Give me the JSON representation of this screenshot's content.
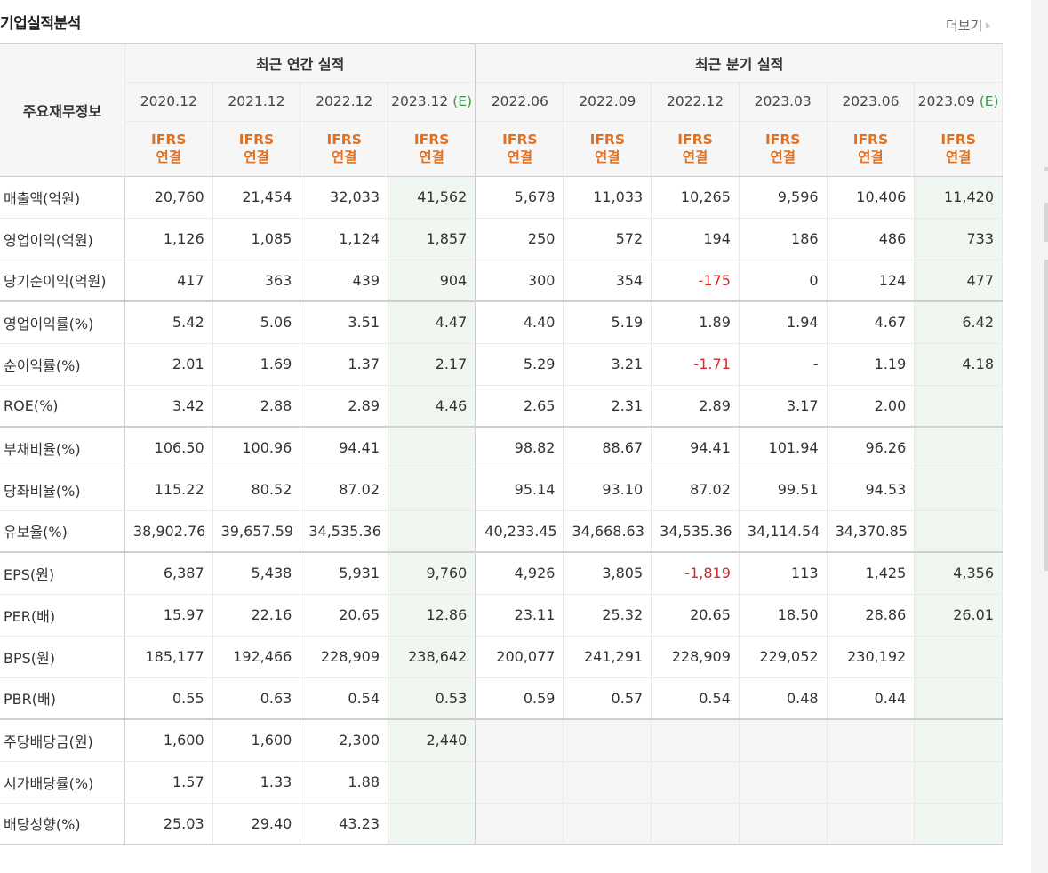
{
  "header": {
    "title": "기업실적분석",
    "more_label": "더보기"
  },
  "table": {
    "row_header": "주요재무정보",
    "groups": {
      "annual": "최근 연간 실적",
      "quarter": "최근 분기 실적"
    },
    "estimate_mark": "(E)",
    "columns": [
      {
        "period": "2020.12",
        "line1": "IFRS",
        "line2": "연결"
      },
      {
        "period": "2021.12",
        "line1": "IFRS",
        "line2": "연결"
      },
      {
        "period": "2022.12",
        "line1": "IFRS",
        "line2": "연결"
      },
      {
        "period": "2023.12",
        "line1": "IFRS",
        "line2": "연결"
      },
      {
        "period": "2022.06",
        "line1": "IFRS",
        "line2": "연결"
      },
      {
        "period": "2022.09",
        "line1": "IFRS",
        "line2": "연결"
      },
      {
        "period": "2022.12",
        "line1": "IFRS",
        "line2": "연결"
      },
      {
        "period": "2023.03",
        "line1": "IFRS",
        "line2": "연결"
      },
      {
        "period": "2023.06",
        "line1": "IFRS",
        "line2": "연결"
      },
      {
        "period": "2023.09",
        "line1": "IFRS",
        "line2": "연결"
      }
    ],
    "rows": [
      {
        "label": "매출액(억원)",
        "values": [
          "20,760",
          "21,454",
          "32,033",
          "41,562",
          "5,678",
          "11,033",
          "10,265",
          "9,596",
          "10,406",
          "11,420"
        ]
      },
      {
        "label": "영업이익(억원)",
        "values": [
          "1,126",
          "1,085",
          "1,124",
          "1,857",
          "250",
          "572",
          "194",
          "186",
          "486",
          "733"
        ]
      },
      {
        "label": "당기순이익(억원)",
        "values": [
          "417",
          "363",
          "439",
          "904",
          "300",
          "354",
          "-175",
          "0",
          "124",
          "477"
        ]
      },
      {
        "label": "영업이익률(%)",
        "values": [
          "5.42",
          "5.06",
          "3.51",
          "4.47",
          "4.40",
          "5.19",
          "1.89",
          "1.94",
          "4.67",
          "6.42"
        ]
      },
      {
        "label": "순이익률(%)",
        "values": [
          "2.01",
          "1.69",
          "1.37",
          "2.17",
          "5.29",
          "3.21",
          "-1.71",
          "-",
          "1.19",
          "4.18"
        ]
      },
      {
        "label": "ROE(%)",
        "values": [
          "3.42",
          "2.88",
          "2.89",
          "4.46",
          "2.65",
          "2.31",
          "2.89",
          "3.17",
          "2.00",
          ""
        ]
      },
      {
        "label": "부채비율(%)",
        "values": [
          "106.50",
          "100.96",
          "94.41",
          "",
          "98.82",
          "88.67",
          "94.41",
          "101.94",
          "96.26",
          ""
        ]
      },
      {
        "label": "당좌비율(%)",
        "values": [
          "115.22",
          "80.52",
          "87.02",
          "",
          "95.14",
          "93.10",
          "87.02",
          "99.51",
          "94.53",
          ""
        ]
      },
      {
        "label": "유보율(%)",
        "values": [
          "38,902.76",
          "39,657.59",
          "34,535.36",
          "",
          "40,233.45",
          "34,668.63",
          "34,535.36",
          "34,114.54",
          "34,370.85",
          ""
        ]
      },
      {
        "label": "EPS(원)",
        "values": [
          "6,387",
          "5,438",
          "5,931",
          "9,760",
          "4,926",
          "3,805",
          "-1,819",
          "113",
          "1,425",
          "4,356"
        ]
      },
      {
        "label": "PER(배)",
        "values": [
          "15.97",
          "22.16",
          "20.65",
          "12.86",
          "23.11",
          "25.32",
          "20.65",
          "18.50",
          "28.86",
          "26.01"
        ]
      },
      {
        "label": "BPS(원)",
        "values": [
          "185,177",
          "192,466",
          "228,909",
          "238,642",
          "200,077",
          "241,291",
          "228,909",
          "229,052",
          "230,192",
          ""
        ]
      },
      {
        "label": "PBR(배)",
        "values": [
          "0.55",
          "0.63",
          "0.54",
          "0.53",
          "0.59",
          "0.57",
          "0.54",
          "0.48",
          "0.44",
          ""
        ]
      },
      {
        "label": "주당배당금(원)",
        "values": [
          "1,600",
          "1,600",
          "2,300",
          "2,440",
          "",
          "",
          "",
          "",
          "",
          ""
        ]
      },
      {
        "label": "시가배당률(%)",
        "values": [
          "1.57",
          "1.33",
          "1.88",
          "",
          "",
          "",
          "",
          "",
          "",
          ""
        ]
      },
      {
        "label": "배당성향(%)",
        "values": [
          "25.03",
          "29.40",
          "43.23",
          "",
          "",
          "",
          "",
          "",
          "",
          ""
        ]
      }
    ],
    "colors": {
      "ifrs": "#e2701e",
      "estimate_bg": "#f0f7f0",
      "estimate_mark": "#3a9a4a",
      "negative": "#d42a2a"
    }
  }
}
